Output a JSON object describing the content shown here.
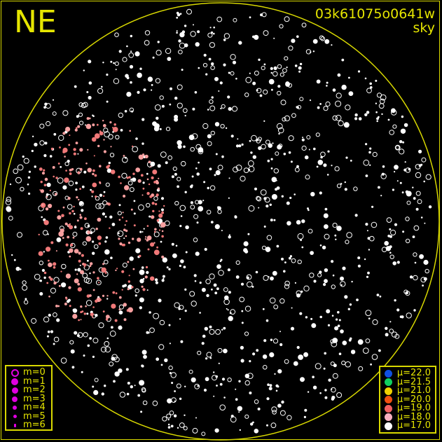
{
  "title": "NE",
  "frame_id": "03k61075o0641w",
  "camera": "sky",
  "colors": {
    "border": "#d8d800",
    "text": "#e6e600",
    "background": "#000000"
  },
  "magnitude_legend": [
    {
      "label": "m=0",
      "symbol": "ring"
    },
    {
      "label": "m=1",
      "symbol": "dot"
    },
    {
      "label": "m=2",
      "symbol": "dot"
    },
    {
      "label": "m=3",
      "symbol": "dot"
    },
    {
      "label": "m=4",
      "symbol": "dot"
    },
    {
      "label": "m=5",
      "symbol": "dot"
    },
    {
      "label": "m=6",
      "symbol": "dot"
    }
  ],
  "magnitude_color": "#e000e0",
  "brightness_legend": [
    {
      "label": "μ=22.0",
      "color": "#1050e0"
    },
    {
      "label": "μ=21.5",
      "color": "#10d060"
    },
    {
      "label": "μ=21.0",
      "color": "#f0d000"
    },
    {
      "label": "μ=20.0",
      "color": "#f05010"
    },
    {
      "label": "μ=19.0",
      "color": "#f06060"
    },
    {
      "label": "μ=18.0",
      "color": "#f8b0c0"
    },
    {
      "label": "μ=17.0",
      "color": "#ffffff"
    }
  ]
}
